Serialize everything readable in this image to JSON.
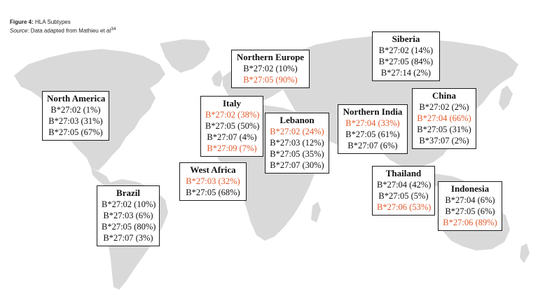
{
  "figure": {
    "label": "Figure 4:",
    "title": "HLA Subtypes",
    "source_label": "Source",
    "source_text": ": Data adapted from Mathieu et al",
    "source_ref": "34"
  },
  "colors": {
    "highlight": "#e05a2b",
    "text": "#111111",
    "land": "#d9d9d9",
    "border": "#1a1a1a"
  },
  "regions": [
    {
      "id": "north-america",
      "name": "North America",
      "entries": [
        {
          "text": "B*27:02 (1%)",
          "highlight": false
        },
        {
          "text": "B*27:03 (31%)",
          "highlight": false
        },
        {
          "text": "B*27:05 (67%)",
          "highlight": false
        }
      ]
    },
    {
      "id": "brazil",
      "name": "Brazil",
      "entries": [
        {
          "text": "B*27:02 (10%)",
          "highlight": false
        },
        {
          "text": "B*27:03 (6%)",
          "highlight": false
        },
        {
          "text": "B*27:05 (80%)",
          "highlight": false
        },
        {
          "text": "B*27:07 (3%)",
          "highlight": false
        }
      ]
    },
    {
      "id": "northern-europe",
      "name": "Northern Europe",
      "entries": [
        {
          "text": "B*27:02 (10%)",
          "highlight": false
        },
        {
          "text": "B*27:05 (90%)",
          "highlight": true
        }
      ]
    },
    {
      "id": "italy",
      "name": "Italy",
      "entries": [
        {
          "text": "B*27:02 (38%)",
          "highlight": true
        },
        {
          "text": "B*27:05 (50%)",
          "highlight": false
        },
        {
          "text": "B*27:07 (4%)",
          "highlight": false
        },
        {
          "text": "B*27:09 (7%)",
          "highlight": true
        }
      ]
    },
    {
      "id": "west-africa",
      "name": "West Africa",
      "entries": [
        {
          "text": "B*27:03 (32%)",
          "highlight": true
        },
        {
          "text": "B*27:05 (68%)",
          "highlight": false
        }
      ]
    },
    {
      "id": "lebanon",
      "name": "Lebanon",
      "entries": [
        {
          "text": "B*27:02 (24%)",
          "highlight": true
        },
        {
          "text": "B*27:03 (12%)",
          "highlight": false
        },
        {
          "text": "B*27:05 (35%)",
          "highlight": false
        },
        {
          "text": "B*27:07 (30%)",
          "highlight": false
        }
      ]
    },
    {
      "id": "northern-india",
      "name": "Northern India",
      "entries": [
        {
          "text": "B*27:04 (33%)",
          "highlight": true
        },
        {
          "text": "B*27:05 (61%)",
          "highlight": false
        },
        {
          "text": "B*27:07 (6%)",
          "highlight": false
        }
      ]
    },
    {
      "id": "siberia",
      "name": "Siberia",
      "entries": [
        {
          "text": "B*27:02 (14%)",
          "highlight": false
        },
        {
          "text": "B*27:05 (84%)",
          "highlight": false
        },
        {
          "text": "B*27:14 (2%)",
          "highlight": false
        }
      ]
    },
    {
      "id": "china",
      "name": "China",
      "entries": [
        {
          "text": "B*27:02 (2%)",
          "highlight": false
        },
        {
          "text": "B*27:04 (66%)",
          "highlight": true
        },
        {
          "text": "B*27:05 (31%)",
          "highlight": false
        },
        {
          "text": "B*37:07 (2%)",
          "highlight": false
        }
      ]
    },
    {
      "id": "thailand",
      "name": "Thailand",
      "entries": [
        {
          "text": "B*27:04 (42%)",
          "highlight": false
        },
        {
          "text": "B*27:05 (5%)",
          "highlight": false
        },
        {
          "text": "B*27:06 (53%)",
          "highlight": true
        }
      ]
    },
    {
      "id": "indonesia",
      "name": "Indonesia",
      "entries": [
        {
          "text": "B*27:04 (6%)",
          "highlight": false
        },
        {
          "text": "B*27:05 (6%)",
          "highlight": false
        },
        {
          "text": "B*27:06 (89%)",
          "highlight": true
        }
      ]
    }
  ]
}
